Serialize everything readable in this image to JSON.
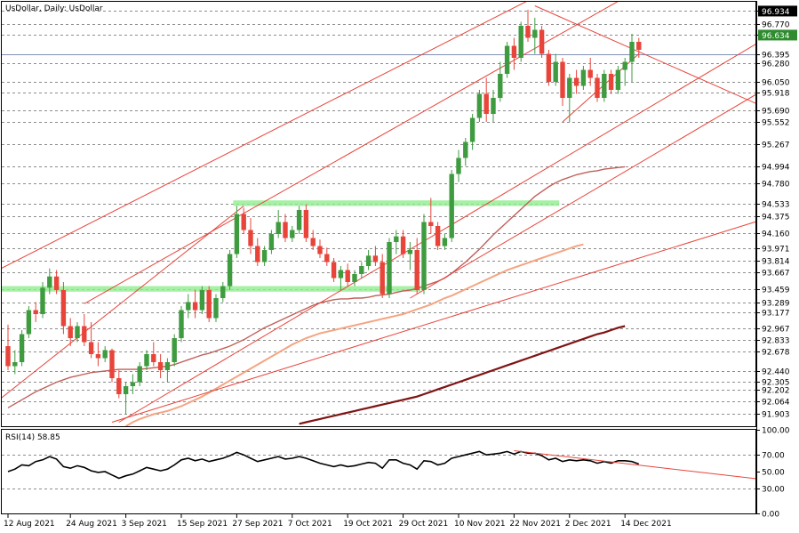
{
  "colors": {
    "background": "#ffffff",
    "bull": "#3f9b3f",
    "bear": "#e8443a",
    "trendline": "#e8443a",
    "zone": "#90ee90",
    "ma_short": "#c0605a",
    "ma_mid": "#f4a582",
    "ma_long": "#7f1414",
    "rsi_line": "#000000",
    "current_price_line": "#7f8fb4",
    "badge_green": "#2e8b2e",
    "badge_black": "#000000"
  },
  "chart_data": [
    {
      "type": "candlestick",
      "title": "UsDollar, Daily:  UsDollar",
      "ylim": [
        91.75,
        97.05
      ],
      "y_ticks": [
        96.934,
        96.77,
        96.634,
        96.395,
        96.28,
        96.05,
        95.918,
        95.69,
        95.552,
        95.267,
        94.994,
        94.78,
        94.533,
        94.375,
        94.16,
        93.971,
        93.814,
        93.667,
        93.459,
        93.289,
        93.177,
        92.967,
        92.833,
        92.678,
        92.44,
        92.305,
        92.202,
        92.064,
        91.903
      ],
      "y_tick_labels": [
        "96.934",
        "96.770",
        "96.634",
        "96.395",
        "96.280",
        "96.050",
        "95.918",
        "95.690",
        "95.552",
        "95.267",
        "94.994",
        "94.780",
        "94.533",
        "94.375",
        "94.160",
        "93.971",
        "93.814",
        "93.667",
        "93.459",
        "93.289",
        "93.177",
        "92.967",
        "92.833",
        "92.678",
        "92.440",
        "92.305",
        "92.202",
        "92.064",
        "91.903"
      ],
      "highlighted_levels": [
        {
          "value": 96.934,
          "label": "96.934",
          "style": "black"
        },
        {
          "value": 96.634,
          "label": "96.634",
          "style": "green"
        }
      ],
      "current_price": 96.395,
      "x_labels": [
        "12 Aug 2021",
        "24 Aug 2021",
        "3 Sep 2021",
        "15 Sep 2021",
        "27 Sep 2021",
        "7 Oct 2021",
        "19 Oct 2021",
        "29 Oct 2021",
        "10 Nov 2021",
        "22 Nov 2021",
        "2 Dec 2021",
        "14 Dec 2021"
      ],
      "x_label_index": [
        0,
        9,
        17,
        25,
        33,
        41,
        49,
        57,
        65,
        73,
        81,
        89
      ],
      "candles": [
        [
          92.75,
          93.02,
          92.45,
          92.5
        ],
        [
          92.5,
          92.7,
          92.4,
          92.55
        ],
        [
          92.55,
          92.95,
          92.5,
          92.9
        ],
        [
          92.9,
          93.25,
          92.85,
          93.2
        ],
        [
          93.2,
          93.3,
          93.05,
          93.15
        ],
        [
          93.15,
          93.55,
          93.1,
          93.48
        ],
        [
          93.48,
          93.72,
          93.4,
          93.62
        ],
        [
          93.62,
          93.7,
          93.4,
          93.45
        ],
        [
          93.45,
          93.55,
          92.9,
          93.0
        ],
        [
          93.0,
          93.1,
          92.75,
          92.85
        ],
        [
          92.85,
          93.05,
          92.8,
          93.0
        ],
        [
          93.0,
          93.15,
          92.75,
          92.8
        ],
        [
          92.8,
          93.05,
          92.6,
          92.65
        ],
        [
          92.65,
          92.8,
          92.5,
          92.6
        ],
        [
          92.6,
          92.75,
          92.55,
          92.7
        ],
        [
          92.7,
          92.72,
          92.3,
          92.35
        ],
        [
          92.35,
          92.45,
          92.1,
          92.15
        ],
        [
          92.15,
          92.3,
          91.9,
          92.25
        ],
        [
          92.25,
          92.4,
          92.15,
          92.3
        ],
        [
          92.3,
          92.55,
          92.25,
          92.5
        ],
        [
          92.5,
          92.7,
          92.45,
          92.65
        ],
        [
          92.65,
          92.8,
          92.5,
          92.55
        ],
        [
          92.55,
          92.65,
          92.35,
          92.45
        ],
        [
          92.45,
          92.6,
          92.3,
          92.55
        ],
        [
          92.55,
          92.9,
          92.5,
          92.85
        ],
        [
          92.85,
          93.25,
          92.8,
          93.2
        ],
        [
          93.2,
          93.4,
          93.1,
          93.3
        ],
        [
          93.3,
          93.45,
          93.1,
          93.2
        ],
        [
          93.2,
          93.5,
          93.15,
          93.45
        ],
        [
          93.45,
          93.5,
          93.05,
          93.1
        ],
        [
          93.1,
          93.4,
          93.05,
          93.35
        ],
        [
          93.35,
          93.55,
          93.3,
          93.5
        ],
        [
          93.5,
          93.95,
          93.45,
          93.9
        ],
        [
          93.9,
          94.5,
          93.85,
          94.4
        ],
        [
          94.4,
          94.48,
          94.15,
          94.2
        ],
        [
          94.2,
          94.35,
          93.9,
          94.0
        ],
        [
          94.0,
          94.1,
          93.75,
          93.8
        ],
        [
          93.8,
          94.0,
          93.75,
          93.95
        ],
        [
          93.95,
          94.2,
          93.9,
          94.15
        ],
        [
          94.15,
          94.45,
          94.1,
          94.3
        ],
        [
          94.3,
          94.4,
          94.05,
          94.1
        ],
        [
          94.1,
          94.25,
          94.05,
          94.2
        ],
        [
          94.2,
          94.5,
          94.15,
          94.45
        ],
        [
          94.45,
          94.52,
          94.05,
          94.1
        ],
        [
          94.1,
          94.2,
          93.95,
          94.0
        ],
        [
          94.0,
          94.08,
          93.85,
          93.9
        ],
        [
          93.9,
          93.98,
          93.75,
          93.8
        ],
        [
          93.8,
          93.85,
          93.55,
          93.6
        ],
        [
          93.6,
          93.75,
          93.45,
          93.7
        ],
        [
          93.7,
          93.78,
          93.5,
          93.55
        ],
        [
          93.55,
          93.7,
          93.5,
          93.65
        ],
        [
          93.65,
          93.8,
          93.6,
          93.75
        ],
        [
          93.75,
          93.95,
          93.7,
          93.88
        ],
        [
          93.88,
          94.0,
          93.75,
          93.8
        ],
        [
          93.8,
          93.9,
          93.35,
          93.4
        ],
        [
          93.4,
          94.1,
          93.35,
          94.05
        ],
        [
          94.05,
          94.2,
          93.9,
          94.12
        ],
        [
          94.12,
          94.2,
          93.85,
          93.9
        ],
        [
          93.9,
          94.05,
          93.7,
          93.95
        ],
        [
          93.95,
          94.1,
          93.4,
          93.45
        ],
        [
          93.45,
          94.4,
          93.4,
          94.3
        ],
        [
          94.3,
          94.6,
          94.15,
          94.25
        ],
        [
          94.25,
          94.3,
          93.95,
          94.0
        ],
        [
          94.0,
          94.15,
          93.95,
          94.1
        ],
        [
          94.1,
          94.95,
          94.05,
          94.9
        ],
        [
          94.9,
          95.2,
          94.8,
          95.1
        ],
        [
          95.1,
          95.35,
          95.0,
          95.3
        ],
        [
          95.3,
          95.65,
          95.2,
          95.6
        ],
        [
          95.6,
          95.95,
          95.55,
          95.9
        ],
        [
          95.9,
          96.1,
          95.55,
          95.65
        ],
        [
          95.65,
          95.95,
          95.55,
          95.85
        ],
        [
          95.85,
          96.3,
          95.8,
          96.15
        ],
        [
          96.15,
          96.55,
          96.1,
          96.5
        ],
        [
          96.5,
          96.6,
          96.2,
          96.35
        ],
        [
          96.35,
          96.8,
          96.3,
          96.75
        ],
        [
          96.75,
          96.95,
          96.55,
          96.6
        ],
        [
          96.6,
          96.85,
          96.4,
          96.7
        ],
        [
          96.7,
          96.75,
          96.35,
          96.4
        ],
        [
          96.4,
          96.45,
          96.0,
          96.05
        ],
        [
          96.05,
          96.4,
          96.0,
          96.3
        ],
        [
          96.3,
          96.35,
          95.75,
          95.85
        ],
        [
          95.85,
          96.15,
          95.55,
          96.1
        ],
        [
          96.1,
          96.2,
          95.9,
          96.0
        ],
        [
          96.0,
          96.25,
          95.95,
          96.2
        ],
        [
          96.2,
          96.35,
          96.0,
          96.1
        ],
        [
          96.1,
          96.15,
          95.8,
          95.85
        ],
        [
          95.85,
          96.2,
          95.8,
          96.15
        ],
        [
          96.15,
          96.2,
          95.9,
          95.95
        ],
        [
          95.95,
          96.25,
          95.9,
          96.2
        ],
        [
          96.2,
          96.35,
          96.0,
          96.3
        ],
        [
          96.3,
          96.65,
          96.05,
          96.55
        ],
        [
          96.55,
          96.6,
          96.35,
          96.45
        ]
      ],
      "moving_averages": [
        {
          "color_key": "ma_short",
          "start": 0,
          "values": [
            91.98,
            92.03,
            92.08,
            92.13,
            92.18,
            92.22,
            92.26,
            92.3,
            92.33,
            92.36,
            92.38,
            92.4,
            92.42,
            92.43,
            92.44,
            92.45,
            92.46,
            92.46,
            92.46,
            92.46,
            92.47,
            92.48,
            92.49,
            92.5,
            92.52,
            92.55,
            92.58,
            92.61,
            92.64,
            92.66,
            92.69,
            92.72,
            92.75,
            92.79,
            92.83,
            92.88,
            92.93,
            92.98,
            93.02,
            93.06,
            93.1,
            93.14,
            93.18,
            93.22,
            93.26,
            93.29,
            93.31,
            93.33,
            93.34,
            93.34,
            93.35,
            93.35,
            93.36,
            93.38,
            93.39,
            93.4,
            93.42,
            93.44,
            93.45,
            93.47,
            93.5,
            93.53,
            93.56,
            93.6,
            93.66,
            93.73,
            93.8,
            93.88,
            93.96,
            94.05,
            94.14,
            94.22,
            94.3,
            94.38,
            94.46,
            94.54,
            94.62,
            94.68,
            94.74,
            94.79,
            94.83,
            94.86,
            94.89,
            94.91,
            94.93,
            94.94,
            94.96,
            94.97,
            94.98,
            94.99
          ]
        },
        {
          "color_key": "ma_mid",
          "start": 17,
          "values": [
            91.75,
            91.8,
            91.84,
            91.87,
            91.9,
            91.92,
            91.94,
            91.97,
            92.0,
            92.04,
            92.08,
            92.12,
            92.17,
            92.22,
            92.27,
            92.32,
            92.37,
            92.42,
            92.47,
            92.52,
            92.57,
            92.62,
            92.67,
            92.72,
            92.77,
            92.81,
            92.85,
            92.88,
            92.91,
            92.93,
            92.95,
            92.97,
            92.99,
            93.01,
            93.03,
            93.05,
            93.07,
            93.09,
            93.11,
            93.13,
            93.15,
            93.18,
            93.21,
            93.24,
            93.27,
            93.31,
            93.35,
            93.38,
            93.42,
            93.46,
            93.5,
            93.54,
            93.58,
            93.62,
            93.66,
            93.7,
            93.73,
            93.76,
            93.79,
            93.82,
            93.85,
            93.88,
            93.91,
            93.94,
            93.97,
            94.0,
            94.02
          ]
        },
        {
          "color_key": "ma_long",
          "start": 42,
          "values": [
            91.78,
            91.8,
            91.82,
            91.84,
            91.86,
            91.88,
            91.9,
            91.92,
            91.94,
            91.96,
            91.98,
            92.0,
            92.02,
            92.04,
            92.06,
            92.08,
            92.1,
            92.12,
            92.15,
            92.18,
            92.21,
            92.24,
            92.27,
            92.3,
            92.33,
            92.36,
            92.39,
            92.42,
            92.45,
            92.48,
            92.51,
            92.54,
            92.57,
            92.6,
            92.63,
            92.66,
            92.69,
            92.72,
            92.75,
            92.78,
            92.81,
            92.84,
            92.87,
            92.9,
            92.92,
            92.95,
            92.98,
            93.0
          ]
        }
      ],
      "zones": [
        {
          "from_index": 33,
          "to_index": 79,
          "low": 94.5,
          "high": 94.57
        },
        {
          "from_index": -1,
          "to_index": 59,
          "low": 93.43,
          "high": 93.5
        }
      ],
      "trendlines": [
        {
          "x1": -1,
          "y1": 93.72,
          "x2": 94,
          "y2": 97.9
        },
        {
          "x1": 11,
          "y1": 93.28,
          "x2": 94,
          "y2": 97.35
        },
        {
          "x1": 16,
          "y1": 91.8,
          "x2": 124,
          "y2": 97.35
        },
        {
          "x1": 15,
          "y1": 91.8,
          "x2": 130,
          "y2": 94.9
        },
        {
          "x1": 58,
          "y1": 93.35,
          "x2": 110,
          "y2": 96.0
        },
        {
          "x1": 76,
          "y1": 97.0,
          "x2": 110,
          "y2": 95.7
        },
        {
          "x1": 80,
          "y1": 95.55,
          "x2": 91,
          "y2": 96.4
        },
        {
          "x1": -1,
          "y1": 92.1,
          "x2": 34,
          "y2": 94.5
        }
      ]
    },
    {
      "type": "line",
      "title": "RSI(14) 58.85",
      "ylim": [
        0,
        100
      ],
      "y_ticks": [
        100,
        70,
        50,
        30,
        0
      ],
      "y_tick_labels": [
        "100.00",
        "70.00",
        "50.00",
        "30.00",
        "0.00"
      ],
      "levels": [
        70,
        30
      ],
      "values": [
        50,
        53,
        58,
        57,
        62,
        64,
        68,
        65,
        56,
        54,
        57,
        55,
        51,
        49,
        50,
        46,
        42,
        45,
        47,
        51,
        55,
        53,
        51,
        53,
        58,
        64,
        66,
        63,
        65,
        62,
        64,
        66,
        69,
        73,
        70,
        66,
        62,
        64,
        66,
        68,
        65,
        66,
        68,
        66,
        63,
        60,
        58,
        56,
        58,
        56,
        57,
        59,
        61,
        60,
        54,
        64,
        64,
        60,
        58,
        53,
        63,
        62,
        58,
        60,
        66,
        68,
        70,
        72,
        74,
        70,
        71,
        72,
        74,
        71,
        74,
        72,
        72,
        69,
        64,
        66,
        62,
        64,
        63,
        64,
        63,
        60,
        62,
        60,
        63,
        63,
        62,
        59
      ],
      "trendline": {
        "x1": 73,
        "y1": 75,
        "x2": 122,
        "y2": 28
      }
    }
  ]
}
